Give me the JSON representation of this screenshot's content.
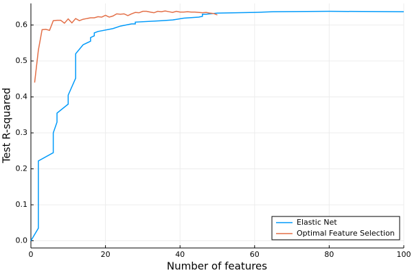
{
  "chart_data": {
    "type": "line",
    "x_label": "Number of features",
    "y_label": "Test R-squared",
    "xlim": [
      0,
      100
    ],
    "xticks": [
      0,
      20,
      40,
      60,
      80,
      100
    ],
    "ylim": [
      -0.02,
      0.66
    ],
    "yticks": [
      {
        "value": 0,
        "label": "0.0"
      },
      0.1,
      0.2,
      0.3,
      0.4,
      0.5,
      0.6
    ],
    "grid": true,
    "legend": "bottom-right",
    "series": [
      {
        "name": "Elastic Net",
        "color": "#009afa",
        "x": [
          0,
          2,
          2,
          6,
          6,
          7,
          7,
          10,
          10,
          12,
          12,
          14,
          16,
          16,
          17,
          17,
          18,
          22,
          24,
          27,
          28,
          28,
          35,
          38,
          41,
          45,
          46,
          46,
          47,
          50,
          60,
          65,
          80,
          100
        ],
        "values": [
          0,
          0.035,
          0.222,
          0.245,
          0.3,
          0.33,
          0.355,
          0.38,
          0.405,
          0.452,
          0.52,
          0.545,
          0.555,
          0.565,
          0.57,
          0.578,
          0.582,
          0.59,
          0.597,
          0.603,
          0.603,
          0.608,
          0.612,
          0.614,
          0.619,
          0.622,
          0.624,
          0.63,
          0.63,
          0.633,
          0.635,
          0.637,
          0.638,
          0.637
        ]
      },
      {
        "name": "Optimal Feature Selection",
        "color": "#e36f47",
        "x": [
          1,
          2,
          3,
          4,
          5,
          6,
          7,
          8,
          9,
          10,
          11,
          12,
          13,
          14,
          15,
          16,
          17,
          18,
          19,
          20,
          21,
          22,
          23,
          24,
          25,
          26,
          27,
          28,
          29,
          30,
          31,
          32,
          33,
          34,
          35,
          36,
          37,
          38,
          39,
          40,
          41,
          42,
          43,
          44,
          45,
          46,
          47,
          48,
          49,
          50
        ],
        "values": [
          0.44,
          0.53,
          0.587,
          0.588,
          0.585,
          0.612,
          0.613,
          0.613,
          0.605,
          0.617,
          0.606,
          0.618,
          0.612,
          0.616,
          0.618,
          0.62,
          0.62,
          0.623,
          0.622,
          0.627,
          0.622,
          0.625,
          0.631,
          0.63,
          0.631,
          0.626,
          0.631,
          0.635,
          0.634,
          0.638,
          0.638,
          0.636,
          0.634,
          0.638,
          0.637,
          0.639,
          0.637,
          0.635,
          0.638,
          0.636,
          0.636,
          0.637,
          0.636,
          0.636,
          0.635,
          0.634,
          0.635,
          0.633,
          0.632,
          0.628
        ]
      }
    ]
  }
}
